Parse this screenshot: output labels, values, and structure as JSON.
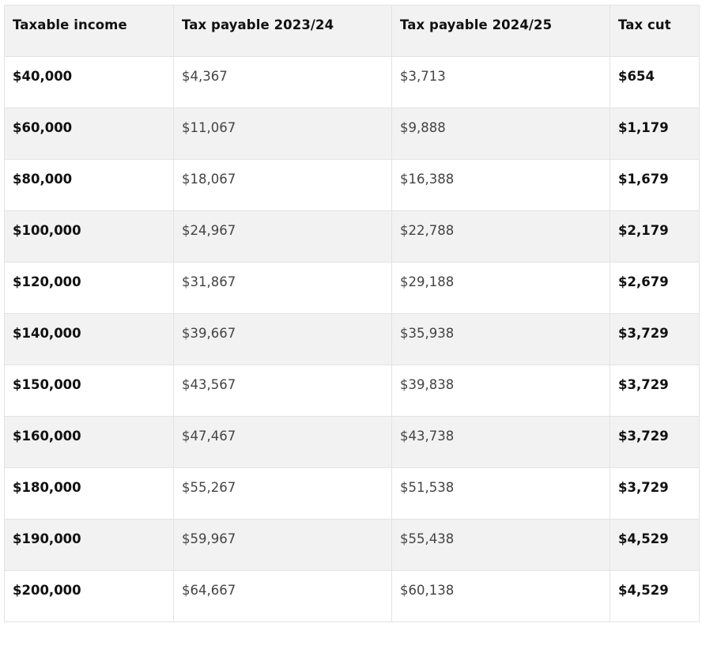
{
  "table": {
    "headers": [
      "Taxable income",
      "Tax payable 2023/24",
      "Tax payable 2024/25",
      "Tax cut"
    ],
    "rows": [
      [
        "$40,000",
        "$4,367",
        "$3,713",
        "$654"
      ],
      [
        "$60,000",
        "$11,067",
        "$9,888",
        "$1,179"
      ],
      [
        "$80,000",
        "$18,067",
        "$16,388",
        "$1,679"
      ],
      [
        "$100,000",
        "$24,967",
        "$22,788",
        "$2,179"
      ],
      [
        "$120,000",
        "$31,867",
        "$29,188",
        "$2,679"
      ],
      [
        "$140,000",
        "$39,667",
        "$35,938",
        "$3,729"
      ],
      [
        "$150,000",
        "$43,567",
        "$39,838",
        "$3,729"
      ],
      [
        "$160,000",
        "$47,467",
        "$43,738",
        "$3,729"
      ],
      [
        "$180,000",
        "$55,267",
        "$51,538",
        "$3,729"
      ],
      [
        "$190,000",
        "$59,967",
        "$55,438",
        "$4,529"
      ],
      [
        "$200,000",
        "$64,667",
        "$60,138",
        "$4,529"
      ]
    ]
  }
}
